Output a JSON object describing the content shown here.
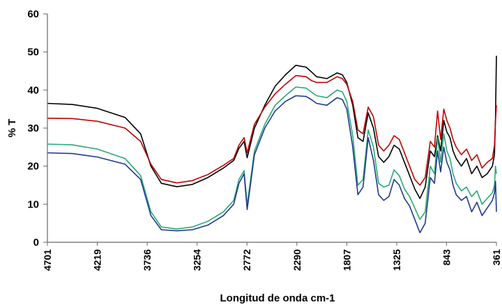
{
  "chart_data": {
    "type": "line",
    "title": "",
    "xlabel": "Longitud de onda cm-1",
    "ylabel": "% T",
    "xlim": [
      4701,
      361
    ],
    "ylim": [
      0,
      60
    ],
    "x_reversed": true,
    "grid": false,
    "legend": "none",
    "x_ticks": [
      "4701",
      "4219",
      "3736",
      "3254",
      "2772",
      "2290",
      "1807",
      "1325",
      "843",
      "361"
    ],
    "y_ticks": [
      "0",
      "10",
      "20",
      "30",
      "40",
      "50",
      "60"
    ],
    "x": [
      4701,
      4460,
      4219,
      3950,
      3800,
      3700,
      3600,
      3450,
      3300,
      3150,
      3000,
      2900,
      2850,
      2800,
      2770,
      2700,
      2600,
      2500,
      2400,
      2300,
      2200,
      2150,
      2100,
      2000,
      1900,
      1850,
      1807,
      1750,
      1700,
      1650,
      1600,
      1550,
      1500,
      1450,
      1400,
      1350,
      1300,
      1250,
      1200,
      1150,
      1100,
      1050,
      1000,
      960,
      930,
      900,
      870,
      840,
      810,
      780,
      750,
      700,
      650,
      600,
      550,
      500,
      450,
      400,
      380,
      370,
      361
    ],
    "series": [
      {
        "color": "#000000",
        "values": [
          36.5,
          36.2,
          35.2,
          32.8,
          28.5,
          20.0,
          15.5,
          14.6,
          15.2,
          17.0,
          19.5,
          21.5,
          24.7,
          26.5,
          22.2,
          30.0,
          36.0,
          41.0,
          44.0,
          46.5,
          46.0,
          44.8,
          43.5,
          43.0,
          44.5,
          44.0,
          42.0,
          36.0,
          27.5,
          26.5,
          34.0,
          30.0,
          22.5,
          21.0,
          22.5,
          25.5,
          24.5,
          21.0,
          17.5,
          14.0,
          11.5,
          14.5,
          24.0,
          22.5,
          28.0,
          24.0,
          32.0,
          29.0,
          27.5,
          24.0,
          22.0,
          20.0,
          22.0,
          18.0,
          20.0,
          17.0,
          18.0,
          20.0,
          23.0,
          33.0,
          49.0
        ]
      },
      {
        "color": "#c00000",
        "values": [
          32.6,
          32.5,
          31.8,
          30.0,
          26.5,
          20.5,
          16.5,
          15.6,
          16.2,
          17.8,
          20.2,
          22.0,
          25.5,
          27.5,
          23.5,
          31.0,
          35.5,
          39.0,
          41.5,
          43.8,
          43.5,
          42.5,
          42.0,
          42.0,
          43.5,
          43.0,
          41.5,
          37.0,
          29.5,
          28.5,
          35.5,
          33.0,
          25.5,
          24.0,
          25.5,
          28.0,
          27.0,
          23.5,
          20.0,
          16.5,
          15.0,
          17.0,
          26.5,
          25.0,
          34.5,
          27.0,
          35.0,
          32.0,
          30.0,
          27.0,
          25.0,
          23.0,
          24.5,
          21.5,
          23.0,
          19.5,
          21.0,
          22.0,
          25.5,
          32.0,
          36.0
        ]
      },
      {
        "color": "#2ba878",
        "values": [
          25.8,
          25.6,
          24.5,
          22.0,
          17.5,
          8.0,
          4.0,
          3.5,
          4.0,
          5.5,
          8.0,
          11.0,
          16.5,
          18.8,
          9.8,
          24.0,
          31.0,
          36.0,
          38.5,
          40.8,
          40.5,
          39.5,
          38.5,
          38.0,
          40.0,
          39.5,
          37.0,
          28.0,
          15.0,
          16.5,
          29.5,
          25.0,
          15.5,
          14.5,
          15.0,
          19.0,
          17.5,
          14.0,
          12.0,
          9.0,
          6.0,
          8.0,
          20.0,
          18.0,
          27.5,
          21.0,
          28.5,
          24.0,
          22.0,
          18.0,
          15.5,
          13.5,
          14.5,
          12.0,
          13.5,
          10.0,
          11.5,
          13.0,
          15.0,
          20.0,
          18.0
        ]
      },
      {
        "color": "#1f3a8a",
        "values": [
          23.5,
          23.3,
          22.4,
          20.5,
          16.5,
          7.0,
          3.3,
          3.0,
          3.3,
          4.5,
          7.0,
          10.0,
          15.5,
          18.0,
          8.6,
          23.0,
          30.0,
          34.5,
          37.0,
          38.5,
          38.3,
          37.5,
          36.5,
          36.0,
          38.0,
          37.5,
          35.0,
          25.0,
          12.5,
          14.5,
          27.5,
          21.5,
          12.5,
          11.0,
          12.0,
          16.5,
          15.0,
          11.5,
          9.5,
          6.0,
          2.5,
          5.0,
          17.0,
          15.5,
          24.0,
          18.5,
          25.0,
          21.0,
          19.0,
          15.0,
          12.5,
          11.0,
          12.0,
          8.0,
          10.5,
          7.0,
          9.0,
          11.0,
          13.0,
          16.0,
          8.0
        ]
      }
    ]
  }
}
